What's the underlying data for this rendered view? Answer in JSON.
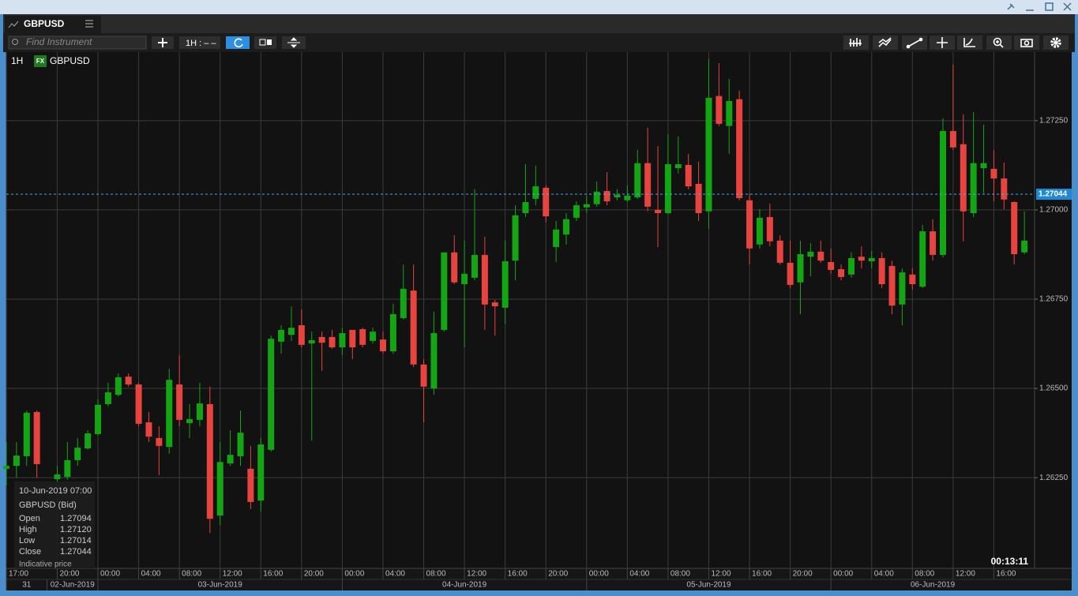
{
  "window": {
    "tab": "GBPUSD",
    "search_placeholder": "Find Instrument",
    "interval_button": "1H : – –"
  },
  "chart_header": {
    "interval": "1H",
    "badge": "FX",
    "instrument": "GBPUSD"
  },
  "chart_data": {
    "type": "candlestick",
    "open": [
      1.26275,
      1.26283,
      1.2631,
      1.26434,
      null,
      1.26246,
      1.26252,
      1.26299,
      1.26332,
      1.26372,
      1.26456,
      1.26482,
      1.26533,
      1.26511,
      1.26405,
      1.26361,
      1.26336,
      1.26511,
      1.26403,
      1.26412,
      1.26456,
      1.26144,
      1.2629,
      1.2631,
      1.26275,
      1.26186,
      1.26328,
      1.26631,
      1.2665,
      1.26677,
      1.26626,
      1.26644,
      1.26644,
      1.26615,
      1.26664,
      1.26666,
      1.26633,
      1.26637,
      1.26604,
      1.26697,
      1.26774,
      1.26567,
      1.265,
      1.26664,
      1.26881,
      1.26792,
      1.2681,
      1.26874,
      1.26741,
      1.26726,
      1.26858,
      1.26991,
      1.27031,
      1.27062,
      1.26896,
      1.26931,
      1.26978,
      1.27007,
      1.27016,
      1.27053,
      1.27035,
      1.27027,
      1.27035,
      1.27131,
      1.27,
      1.26991,
      1.27117,
      1.27126,
      1.27073,
      1.26996,
      1.27319,
      1.27235,
      1.2731,
      1.27027,
      1.26903,
      1.2698,
      1.26914,
      1.26852,
      1.26797,
      1.26869,
      1.26883,
      1.26854,
      1.26834,
      1.26819,
      1.26869,
      1.26856,
      1.26865,
      1.26843,
      1.26735,
      1.26819,
      1.26785,
      1.2694,
      1.26874,
      1.27221,
      1.27184,
      1.26991,
      1.27117,
      1.27115,
      1.27088,
      1.27022,
      1.26881
    ],
    "high": [
      1.2635,
      1.2635,
      1.26438,
      1.26438,
      null,
      1.26283,
      1.2635,
      1.26361,
      1.26383,
      1.26471,
      1.26516,
      1.26542,
      1.26542,
      1.26516,
      1.26434,
      1.26394,
      1.26555,
      1.26593,
      1.26456,
      1.26516,
      1.26505,
      1.2635,
      1.26383,
      1.26438,
      1.26339,
      1.26361,
      1.26648,
      1.26677,
      1.2673,
      1.26721,
      1.26659,
      1.26659,
      1.26664,
      1.2667,
      1.26664,
      1.2667,
      1.2667,
      1.26659,
      1.26737,
      1.26847,
      1.26847,
      1.26582,
      1.26715,
      1.26881,
      1.26929,
      1.26914,
      1.27058,
      1.26925,
      1.26748,
      1.26914,
      1.27013,
      1.27128,
      1.27124,
      1.27069,
      1.26969,
      1.26991,
      1.27024,
      1.2704,
      1.2708,
      1.27106,
      1.27058,
      1.27069,
      1.27168,
      1.2723,
      1.27179,
      1.27212,
      1.27206,
      1.27157,
      1.27135,
      1.27423,
      1.27411,
      1.27367,
      1.27334,
      1.27047,
      1.27002,
      1.27018,
      1.26929,
      1.26914,
      1.26914,
      1.26907,
      1.26914,
      1.26892,
      1.26847,
      1.26881,
      1.26898,
      1.26885,
      1.26881,
      1.26858,
      1.26836,
      1.26836,
      1.26958,
      1.26974,
      1.27257,
      1.27407,
      1.27268,
      1.27274,
      1.27239,
      1.27168,
      1.27133,
      1.27024,
      1.26996
    ],
    "low": [
      1.26228,
      1.2625,
      1.26283,
      1.2625,
      null,
      1.26235,
      1.26244,
      1.26283,
      1.26328,
      1.26367,
      1.26449,
      1.26478,
      1.26505,
      1.26394,
      1.2635,
      1.26257,
      1.26317,
      1.26394,
      1.26361,
      1.26394,
      1.26095,
      1.26117,
      1.26283,
      1.26283,
      1.26162,
      1.26155,
      1.26323,
      1.26597,
      1.26633,
      1.26615,
      1.26354,
      1.26549,
      1.26611,
      1.26593,
      1.26582,
      1.26615,
      1.26626,
      1.26597,
      1.26597,
      1.26693,
      1.2656,
      1.26405,
      1.26482,
      1.26659,
      1.26792,
      1.26615,
      1.26803,
      1.26664,
      1.26648,
      1.26681,
      1.26803,
      1.2698,
      1.27013,
      1.26965,
      1.26854,
      1.26903,
      1.26969,
      1.26991,
      1.27009,
      1.27013,
      1.27027,
      1.27022,
      1.27031,
      1.26996,
      1.26896,
      1.26987,
      1.27102,
      1.27058,
      1.26969,
      1.26947,
      1.27235,
      1.27157,
      1.27027,
      1.26847,
      1.26892,
      1.26898,
      1.26847,
      1.26781,
      1.26708,
      1.26814,
      1.26852,
      1.26821,
      1.26803,
      1.2681,
      1.26836,
      1.26836,
      1.26781,
      1.26708,
      1.26677,
      1.26777,
      1.26781,
      1.26858,
      1.26867,
      1.27168,
      1.26912,
      1.2698,
      1.27047,
      1.27024,
      1.27002,
      1.26847,
      1.26876
    ],
    "close": [
      1.26283,
      1.26312,
      1.26432,
      1.26288,
      null,
      1.26259,
      1.26299,
      1.26334,
      1.26374,
      1.26454,
      1.26489,
      1.26531,
      1.26511,
      1.26401,
      1.26365,
      1.26339,
      1.26524,
      1.26412,
      1.26414,
      1.26458,
      1.26135,
      1.26294,
      1.26314,
      1.26376,
      1.26182,
      1.26343,
      1.26639,
      1.26664,
      1.2667,
      1.26622,
      1.26635,
      1.26628,
      1.26615,
      1.26655,
      1.26615,
      1.26622,
      1.26659,
      1.26604,
      1.26708,
      1.26779,
      1.26567,
      1.26505,
      1.26655,
      1.26881,
      1.26797,
      1.26821,
      1.26874,
      1.26735,
      1.2673,
      1.26856,
      1.26985,
      1.27022,
      1.27066,
      1.26982,
      1.26945,
      1.26974,
      1.27013,
      1.27016,
      1.27051,
      1.27024,
      1.27042,
      1.2704,
      1.27131,
      1.27009,
      1.26991,
      1.27128,
      1.27128,
      1.27066,
      1.26991,
      1.27314,
      1.27241,
      1.27305,
      1.27033,
      1.26892,
      1.26978,
      1.26912,
      1.26852,
      1.2679,
      1.26876,
      1.26883,
      1.26858,
      1.26832,
      1.26812,
      1.26865,
      1.26858,
      1.26865,
      1.26792,
      1.26732,
      1.26825,
      1.26792,
      1.2694,
      1.26874,
      1.27221,
      1.27175,
      1.26996,
      1.27131,
      1.27131,
      1.27088,
      1.27029,
      1.26876,
      1.26914
    ],
    "up_color": "#14a514",
    "down_color": "#e8443f",
    "ylim": [
      1.25996,
      1.27442
    ],
    "yticks": [
      {
        "value": 1.2625,
        "label": "1.26250"
      },
      {
        "value": 1.265,
        "label": "1.26500"
      },
      {
        "value": 1.2675,
        "label": "1.26750"
      },
      {
        "value": 1.27,
        "label": "1.27000"
      },
      {
        "value": 1.2725,
        "label": "1.27250"
      }
    ],
    "xlim": [
      0,
      101
    ],
    "xticks": [
      {
        "value": 0,
        "label": "17:00"
      },
      {
        "value": 5,
        "label": "20:00"
      },
      {
        "value": 9,
        "label": "00:00"
      },
      {
        "value": 13,
        "label": "04:00"
      },
      {
        "value": 17,
        "label": "08:00"
      },
      {
        "value": 21,
        "label": "12:00"
      },
      {
        "value": 25,
        "label": "16:00"
      },
      {
        "value": 29,
        "label": "20:00"
      },
      {
        "value": 33,
        "label": "00:00"
      },
      {
        "value": 37,
        "label": "04:00"
      },
      {
        "value": 41,
        "label": "08:00"
      },
      {
        "value": 45,
        "label": "12:00"
      },
      {
        "value": 49,
        "label": "16:00"
      },
      {
        "value": 53,
        "label": "20:00"
      },
      {
        "value": 57,
        "label": "00:00"
      },
      {
        "value": 61,
        "label": "04:00"
      },
      {
        "value": 65,
        "label": "08:00"
      },
      {
        "value": 69,
        "label": "12:00"
      },
      {
        "value": 73,
        "label": "16:00"
      },
      {
        "value": 77,
        "label": "20:00"
      },
      {
        "value": 81,
        "label": "00:00"
      },
      {
        "value": 85,
        "label": "04:00"
      },
      {
        "value": 89,
        "label": "08:00"
      },
      {
        "value": 93,
        "label": "12:00"
      },
      {
        "value": 97,
        "label": "16:00"
      }
    ],
    "days": [
      {
        "label": "31",
        "from": 0,
        "to": 4
      },
      {
        "label": "02-Jun-2019",
        "from": 4,
        "to": 9
      },
      {
        "label": "03-Jun-2019",
        "from": 9,
        "to": 33
      },
      {
        "label": "04-Jun-2019",
        "from": 33,
        "to": 57
      },
      {
        "label": "05-Jun-2019",
        "from": 57,
        "to": 81
      },
      {
        "label": "06-Jun-2019",
        "from": 81,
        "to": 101
      }
    ],
    "last_price": {
      "value": 1.27044,
      "label": "1.27044"
    },
    "grid": true
  },
  "countdown": "00:13:11",
  "info": {
    "date": "10-Jun-2019 07:00",
    "instrument": "GBPUSD (Bid)",
    "rows": [
      {
        "label": "Open",
        "value": "1.27094"
      },
      {
        "label": "High",
        "value": "1.27120"
      },
      {
        "label": "Low",
        "value": "1.27014"
      },
      {
        "label": "Close",
        "value": "1.27044"
      }
    ],
    "note": "Indicative price"
  }
}
